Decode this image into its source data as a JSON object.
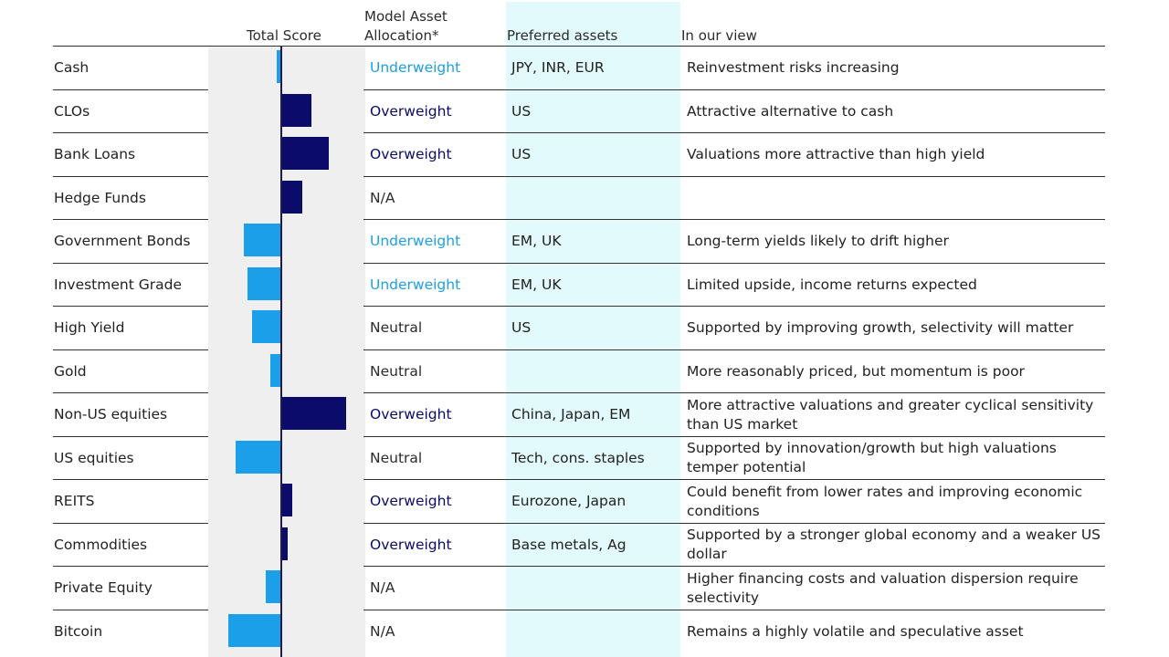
{
  "headers": {
    "total_score": "Total Score",
    "allocation": "Model Asset\nAllocation*",
    "preferred": "Preferred assets",
    "view": "In our view"
  },
  "colors": {
    "underweight": "#1b9fe8",
    "overweight": "#0b0b6b",
    "neutral": "#2b2b2b",
    "positive_bar": "#0b0b6b",
    "negative_bar": "#1b9fe8",
    "score_background": "#efefef",
    "preferred_background": "#e2fafc"
  },
  "rows": [
    {
      "name": "Cash",
      "allocation": "Underweight",
      "preferred": "JPY, INR, EUR",
      "view": "Reinvestment risks increasing"
    },
    {
      "name": "CLOs",
      "allocation": "Overweight",
      "preferred": "US",
      "view": "Attractive alternative to cash"
    },
    {
      "name": "Bank Loans",
      "allocation": "Overweight",
      "preferred": "US",
      "view": "Valuations more attractive than high yield"
    },
    {
      "name": "Hedge Funds",
      "allocation": "N/A",
      "preferred": "",
      "view": ""
    },
    {
      "name": "Government Bonds",
      "allocation": "Underweight",
      "preferred": "EM, UK",
      "view": "Long-term yields likely to drift higher"
    },
    {
      "name": "Investment Grade",
      "allocation": "Underweight",
      "preferred": "EM, UK",
      "view": "Limited upside, income returns expected"
    },
    {
      "name": "High Yield",
      "allocation": "Neutral",
      "preferred": "US",
      "view": "Supported by improving growth, selectivity will matter"
    },
    {
      "name": "Gold",
      "allocation": "Neutral",
      "preferred": "",
      "view": "More reasonably priced, but momentum is poor"
    },
    {
      "name": "Non-US equities",
      "allocation": "Overweight",
      "preferred": "China, Japan, EM",
      "view": "More attractive valuations and greater cyclical sensitivity than US market"
    },
    {
      "name": "US equities",
      "allocation": "Neutral",
      "preferred": "Tech, cons. staples",
      "view": "Supported by innovation/growth but high valuations temper potential"
    },
    {
      "name": "REITS",
      "allocation": "Overweight",
      "preferred": "Eurozone, Japan",
      "view": "Could benefit from lower rates and improving economic conditions"
    },
    {
      "name": "Commodities",
      "allocation": "Overweight",
      "preferred": "Base metals, Ag",
      "view": "Supported by a stronger global economy and a weaker US dollar"
    },
    {
      "name": "Private Equity",
      "allocation": "N/A",
      "preferred": "",
      "view": "Higher financing costs and valuation dispersion require selectivity"
    },
    {
      "name": "Bitcoin",
      "allocation": "N/A",
      "preferred": "",
      "view": "Remains a highly volatile and speculative asset"
    }
  ],
  "chart_data": {
    "type": "bar",
    "orientation": "horizontal",
    "title": "Total Score",
    "categories": [
      "Cash",
      "CLOs",
      "Bank Loans",
      "Hedge Funds",
      "Government Bonds",
      "Investment Grade",
      "High Yield",
      "Gold",
      "Non-US equities",
      "US equities",
      "REITS",
      "Commodities",
      "Private Equity",
      "Bitcoin"
    ],
    "values": [
      -0.05,
      0.45,
      0.7,
      0.32,
      -0.54,
      -0.48,
      -0.42,
      -0.15,
      0.96,
      -0.66,
      0.17,
      0.1,
      -0.22,
      -0.76
    ],
    "xlim": [
      -1,
      1
    ],
    "grid": false,
    "axis_labels_shown": false
  }
}
